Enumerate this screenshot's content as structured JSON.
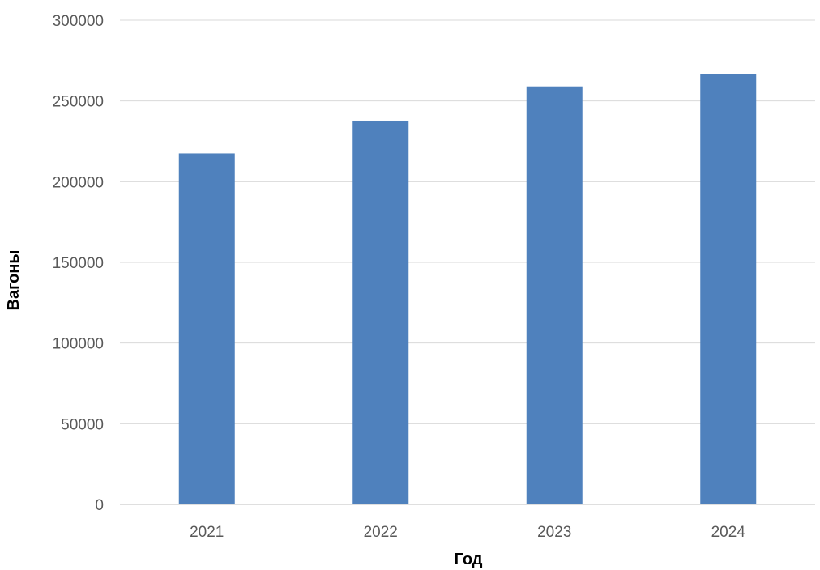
{
  "chart_data": {
    "type": "bar",
    "title": "",
    "xlabel": "Год",
    "ylabel": "Вагоны",
    "categories": [
      "2021",
      "2022",
      "2023",
      "2024"
    ],
    "series": [
      {
        "values": [
          217500,
          237800,
          259000,
          266700
        ]
      }
    ],
    "ylim": [
      0,
      300000
    ],
    "yticks": [
      "0",
      "50000",
      "100000",
      "150000",
      "200000",
      "250000",
      "300000"
    ],
    "grid": true,
    "legend": "none",
    "colors": {
      "bar": "#4f81bd",
      "grid": "#d9d9d9",
      "axis": "#bfbfbf",
      "tick_text": "#595959"
    }
  }
}
